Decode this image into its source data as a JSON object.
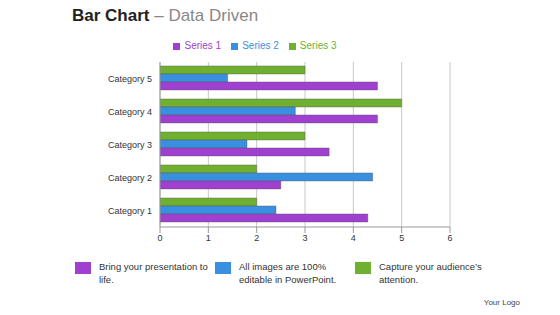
{
  "chart_data": {
    "type": "bar",
    "title": "Bar Chart",
    "subtitle": "– Data Driven",
    "orientation": "horizontal",
    "categories": [
      "Category 1",
      "Category 2",
      "Category 3",
      "Category 4",
      "Category 5"
    ],
    "series": [
      {
        "name": "Series 1",
        "color": "#a040d0",
        "values": [
          4.3,
          2.5,
          3.5,
          4.5,
          4.5
        ]
      },
      {
        "name": "Series 2",
        "color": "#3a90e0",
        "values": [
          2.4,
          4.4,
          1.8,
          2.8,
          1.4
        ]
      },
      {
        "name": "Series 3",
        "color": "#70b030",
        "values": [
          2,
          2,
          3,
          5,
          3
        ]
      }
    ],
    "xlim": [
      0,
      6
    ],
    "xticks": [
      0,
      1,
      2,
      3,
      4,
      5,
      6
    ],
    "grid": true,
    "legend": "top",
    "annotations": [
      "Bring your presentation to life.",
      "All images are 100% editable in PowerPoint.",
      "Capture your audience’s attention.",
      "Your Logo"
    ]
  }
}
